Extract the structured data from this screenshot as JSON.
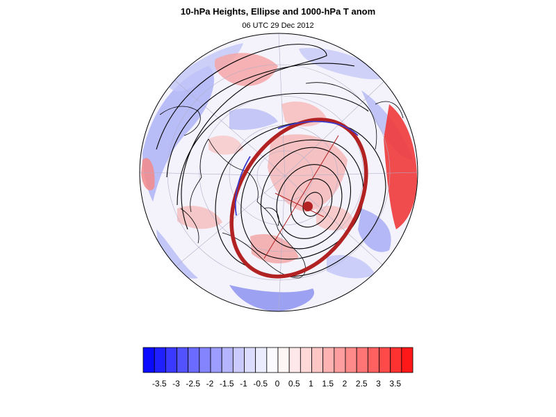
{
  "figure": {
    "title": "10-hPa Heights, Ellipse and 1000-hPa T anom",
    "subtitle": "06 UTC 29 Dec 2012"
  },
  "map": {
    "projection": "orthographic polar",
    "hemisphere": "northern",
    "ellipse_color": "#b22222",
    "ellipse_inner_color": "#3a3acc",
    "contour_color": "#000000",
    "coastline_color": "#000000",
    "graticule_color": "#b0b0c8"
  },
  "colorbar": {
    "ticks": [
      "-3.5",
      "-3",
      "-2.5",
      "-2",
      "-1.5",
      "-1",
      "-0.5",
      "0",
      "0.5",
      "1",
      "1.5",
      "2",
      "2.5",
      "3",
      "3.5"
    ],
    "colors": [
      "#0a0aff",
      "#2020ff",
      "#3939ff",
      "#5252ff",
      "#6b6bff",
      "#8484ff",
      "#9d9dff",
      "#b5b5ff",
      "#cacaff",
      "#dcdcff",
      "#ececff",
      "#fafaff",
      "#fff5f5",
      "#ffe8e8",
      "#ffd8d8",
      "#ffc6c6",
      "#ffb2b2",
      "#ff9e9e",
      "#ff8a8a",
      "#ff7575",
      "#ff6060",
      "#ff4a4a",
      "#ff3232",
      "#ff1818"
    ]
  }
}
